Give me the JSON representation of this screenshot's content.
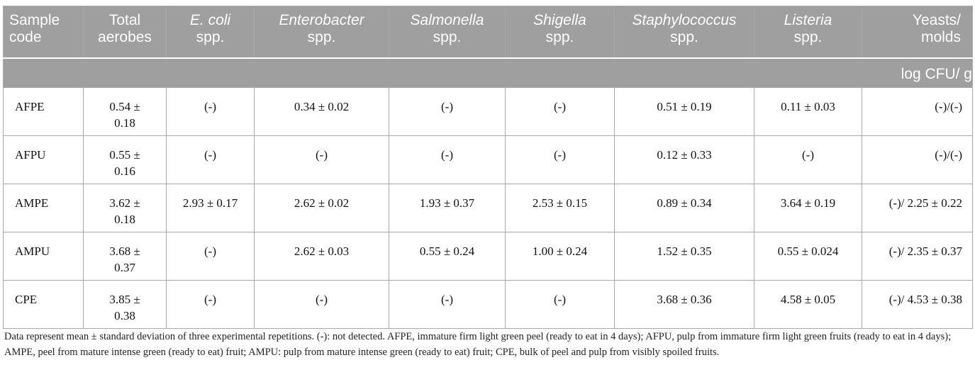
{
  "table": {
    "columns": [
      {
        "label": "Sample code",
        "italic": false,
        "lines": [
          "Sample",
          "code"
        ]
      },
      {
        "label": "Total aerobes",
        "italic": false,
        "lines": [
          "Total",
          "aerobes"
        ]
      },
      {
        "label": "E. coli spp.",
        "italic": true,
        "lines": [
          "E. coli",
          "spp."
        ]
      },
      {
        "label": "Enterobacter spp.",
        "italic": true,
        "lines": [
          "Enterobacter",
          "spp."
        ]
      },
      {
        "label": "Salmonella spp.",
        "italic": true,
        "lines": [
          "Salmonella",
          "spp."
        ]
      },
      {
        "label": "Shigella spp.",
        "italic": true,
        "lines": [
          "Shigella",
          "spp."
        ]
      },
      {
        "label": "Staphylococcus spp.",
        "italic": true,
        "lines": [
          "Staphylococcus",
          "spp."
        ]
      },
      {
        "label": "Listeria spp.",
        "italic": true,
        "lines": [
          "Listeria",
          "spp."
        ]
      },
      {
        "label": "Yeasts/ molds",
        "italic": false,
        "lines": [
          "Yeasts/",
          "molds"
        ]
      }
    ],
    "units": "log CFU/ g",
    "rows": [
      {
        "code": "AFPE",
        "cells": [
          "0.54 ± 0.18",
          "(-)",
          "0.34 ± 0.02",
          "(-)",
          "(-)",
          "0.51 ± 0.19",
          "0.11 ± 0.03",
          "(-)/(-)"
        ]
      },
      {
        "code": "AFPU",
        "cells": [
          "0.55 ± 0.16",
          "(-)",
          "(-)",
          "(-)",
          "(-)",
          "0.12 ± 0.33",
          "(-)",
          "(-)/(-)"
        ]
      },
      {
        "code": "AMPE",
        "cells": [
          "3.62 ± 0.18",
          "2.93 ± 0.17",
          "2.62 ± 0.02",
          "1.93 ± 0.37",
          "2.53 ± 0.15",
          "0.89 ± 0.34",
          "3.64 ± 0.19",
          "(-)/ 2.25 ± 0.22"
        ]
      },
      {
        "code": "AMPU",
        "cells": [
          "3.68 ± 0.37",
          "(-)",
          "2.62 ± 0.03",
          "0.55 ± 0.24",
          "1.00 ± 0.24",
          "1.52 ± 0.35",
          "0.55 ± 0.024",
          "(-)/ 2.35 ± 0.37"
        ]
      },
      {
        "code": "CPE",
        "cells": [
          "3.85 ± 0.38",
          "(-)",
          "(-)",
          "(-)",
          "(-)",
          "3.68 ± 0.36",
          "4.58 ± 0.05",
          "(-)/ 4.53 ± 0.38"
        ]
      }
    ]
  },
  "footnote": "Data represent mean ± standard deviation of three experimental repetitions. (-): not detected. AFPE, immature firm light green peel (ready to eat in 4 days); AFPU, pulp from immature firm light green fruits (ready to eat in 4 days); AMPE, peel from mature intense green (ready to eat) fruit; AMPU: pulp from mature intense green (ready to eat) fruit; CPE, bulk of peel and pulp from visibly spoiled fruits.",
  "colors": {
    "header_bg": "#9f9f9f",
    "header_text": "#ffffff",
    "border": "#a8a8a8"
  }
}
